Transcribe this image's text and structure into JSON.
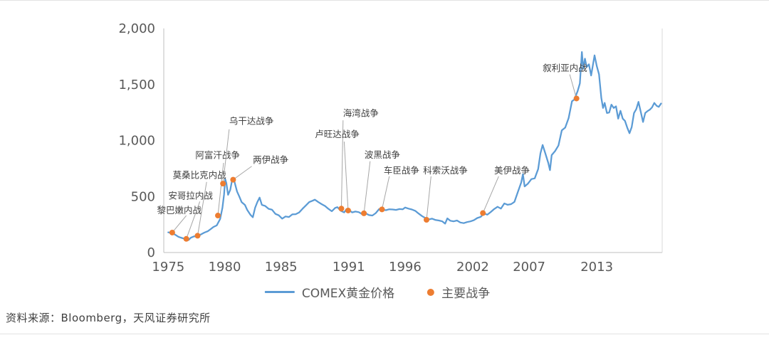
{
  "page": {
    "source_note": "资料来源：Bloomberg，天风证券研究所"
  },
  "chart_data": {
    "type": "line",
    "title": "",
    "xlabel": "",
    "ylabel": "",
    "grid": false,
    "legend_position": "bottom",
    "xlim": [
      1974.6,
      2018.8
    ],
    "ylim": [
      0,
      2000
    ],
    "colors": {
      "line": "#5B9BD5",
      "marker": "#ED7D31",
      "axis_text": "#595959",
      "annotation_text": "#404040",
      "leader_line": "#a6a6a6",
      "axis_line": "#bfbfbf",
      "border": "#d9d9d9"
    },
    "y_ticks": [
      {
        "v": 0,
        "label": "0"
      },
      {
        "v": 500,
        "label": "500"
      },
      {
        "v": 1000,
        "label": "1,000"
      },
      {
        "v": 1500,
        "label": "1,500"
      },
      {
        "v": 2000,
        "label": "2,000"
      }
    ],
    "x_ticks": [
      {
        "v": 1975,
        "label": "1975"
      },
      {
        "v": 1980,
        "label": "1980"
      },
      {
        "v": 1985,
        "label": "1985"
      },
      {
        "v": 1991,
        "label": "1991"
      },
      {
        "v": 1996,
        "label": "1996"
      },
      {
        "v": 2002,
        "label": "2002"
      },
      {
        "v": 2007,
        "label": "2007"
      },
      {
        "v": 2013,
        "label": "2013"
      }
    ],
    "series": [
      {
        "name": "COMEX黄金价格",
        "points": [
          [
            1975.0,
            180
          ],
          [
            1975.3,
            172
          ],
          [
            1975.6,
            160
          ],
          [
            1975.9,
            140
          ],
          [
            1976.2,
            130
          ],
          [
            1976.5,
            120
          ],
          [
            1976.8,
            112
          ],
          [
            1977.0,
            132
          ],
          [
            1977.3,
            145
          ],
          [
            1977.6,
            143
          ],
          [
            1977.9,
            162
          ],
          [
            1978.2,
            178
          ],
          [
            1978.5,
            190
          ],
          [
            1978.8,
            212
          ],
          [
            1979.0,
            228
          ],
          [
            1979.3,
            242
          ],
          [
            1979.6,
            300
          ],
          [
            1979.8,
            400
          ],
          [
            1979.95,
            520
          ],
          [
            1980.05,
            655
          ],
          [
            1980.15,
            620
          ],
          [
            1980.3,
            515
          ],
          [
            1980.5,
            560
          ],
          [
            1980.65,
            640
          ],
          [
            1980.8,
            660
          ],
          [
            1980.95,
            600
          ],
          [
            1981.1,
            545
          ],
          [
            1981.3,
            500
          ],
          [
            1981.5,
            450
          ],
          [
            1981.8,
            425
          ],
          [
            1982.0,
            380
          ],
          [
            1982.3,
            335
          ],
          [
            1982.5,
            315
          ],
          [
            1982.7,
            400
          ],
          [
            1982.9,
            450
          ],
          [
            1983.1,
            490
          ],
          [
            1983.3,
            425
          ],
          [
            1983.6,
            415
          ],
          [
            1983.9,
            390
          ],
          [
            1984.2,
            382
          ],
          [
            1984.5,
            345
          ],
          [
            1984.8,
            332
          ],
          [
            1985.1,
            302
          ],
          [
            1985.4,
            322
          ],
          [
            1985.7,
            317
          ],
          [
            1986.0,
            340
          ],
          [
            1986.3,
            342
          ],
          [
            1986.6,
            357
          ],
          [
            1986.9,
            390
          ],
          [
            1987.2,
            420
          ],
          [
            1987.5,
            450
          ],
          [
            1987.8,
            462
          ],
          [
            1988.0,
            472
          ],
          [
            1988.3,
            450
          ],
          [
            1988.6,
            432
          ],
          [
            1988.9,
            415
          ],
          [
            1989.2,
            390
          ],
          [
            1989.5,
            368
          ],
          [
            1989.8,
            398
          ],
          [
            1990.0,
            405
          ],
          [
            1990.3,
            372
          ],
          [
            1990.6,
            358
          ],
          [
            1990.8,
            388
          ],
          [
            1991.0,
            382
          ],
          [
            1991.3,
            358
          ],
          [
            1991.6,
            366
          ],
          [
            1991.9,
            360
          ],
          [
            1992.2,
            342
          ],
          [
            1992.5,
            350
          ],
          [
            1992.8,
            334
          ],
          [
            1993.1,
            330
          ],
          [
            1993.4,
            352
          ],
          [
            1993.7,
            388
          ],
          [
            1994.0,
            382
          ],
          [
            1994.3,
            378
          ],
          [
            1994.6,
            386
          ],
          [
            1994.9,
            384
          ],
          [
            1995.2,
            380
          ],
          [
            1995.5,
            388
          ],
          [
            1995.8,
            386
          ],
          [
            1996.0,
            402
          ],
          [
            1996.3,
            392
          ],
          [
            1996.6,
            384
          ],
          [
            1996.9,
            372
          ],
          [
            1997.2,
            348
          ],
          [
            1997.5,
            325
          ],
          [
            1997.8,
            308
          ],
          [
            1998.1,
            295
          ],
          [
            1998.4,
            302
          ],
          [
            1998.7,
            290
          ],
          [
            1999.0,
            286
          ],
          [
            1999.3,
            278
          ],
          [
            1999.55,
            258
          ],
          [
            1999.75,
            305
          ],
          [
            2000.0,
            284
          ],
          [
            2000.3,
            278
          ],
          [
            2000.6,
            286
          ],
          [
            2000.9,
            268
          ],
          [
            2001.2,
            262
          ],
          [
            2001.5,
            272
          ],
          [
            2001.8,
            278
          ],
          [
            2002.1,
            288
          ],
          [
            2002.4,
            308
          ],
          [
            2002.7,
            318
          ],
          [
            2003.0,
            348
          ],
          [
            2003.3,
            338
          ],
          [
            2003.6,
            362
          ],
          [
            2003.9,
            388
          ],
          [
            2004.2,
            408
          ],
          [
            2004.5,
            392
          ],
          [
            2004.8,
            438
          ],
          [
            2005.1,
            426
          ],
          [
            2005.4,
            432
          ],
          [
            2005.7,
            452
          ],
          [
            2006.0,
            540
          ],
          [
            2006.3,
            625
          ],
          [
            2006.45,
            700
          ],
          [
            2006.6,
            590
          ],
          [
            2006.9,
            615
          ],
          [
            2007.2,
            655
          ],
          [
            2007.5,
            662
          ],
          [
            2007.8,
            745
          ],
          [
            2008.0,
            885
          ],
          [
            2008.2,
            960
          ],
          [
            2008.45,
            880
          ],
          [
            2008.7,
            800
          ],
          [
            2008.85,
            735
          ],
          [
            2009.0,
            870
          ],
          [
            2009.3,
            905
          ],
          [
            2009.6,
            955
          ],
          [
            2009.9,
            1090
          ],
          [
            2010.2,
            1115
          ],
          [
            2010.5,
            1200
          ],
          [
            2010.8,
            1350
          ],
          [
            2011.0,
            1365
          ],
          [
            2011.3,
            1440
          ],
          [
            2011.5,
            1510
          ],
          [
            2011.68,
            1790
          ],
          [
            2011.8,
            1640
          ],
          [
            2011.95,
            1730
          ],
          [
            2012.1,
            1655
          ],
          [
            2012.3,
            1680
          ],
          [
            2012.5,
            1580
          ],
          [
            2012.7,
            1700
          ],
          [
            2012.8,
            1760
          ],
          [
            2013.0,
            1665
          ],
          [
            2013.2,
            1590
          ],
          [
            2013.4,
            1380
          ],
          [
            2013.55,
            1290
          ],
          [
            2013.7,
            1335
          ],
          [
            2013.9,
            1245
          ],
          [
            2014.1,
            1250
          ],
          [
            2014.3,
            1320
          ],
          [
            2014.5,
            1290
          ],
          [
            2014.7,
            1305
          ],
          [
            2014.9,
            1195
          ],
          [
            2015.1,
            1265
          ],
          [
            2015.3,
            1195
          ],
          [
            2015.5,
            1175
          ],
          [
            2015.7,
            1115
          ],
          [
            2015.9,
            1065
          ],
          [
            2016.1,
            1120
          ],
          [
            2016.3,
            1245
          ],
          [
            2016.5,
            1280
          ],
          [
            2016.7,
            1345
          ],
          [
            2016.9,
            1255
          ],
          [
            2017.1,
            1165
          ],
          [
            2017.3,
            1245
          ],
          [
            2017.5,
            1262
          ],
          [
            2017.7,
            1275
          ],
          [
            2017.9,
            1295
          ],
          [
            2018.1,
            1335
          ],
          [
            2018.3,
            1310
          ],
          [
            2018.5,
            1300
          ],
          [
            2018.7,
            1330
          ]
        ]
      }
    ],
    "markers": {
      "name": "主要战争",
      "wars": [
        {
          "name": "黎巴嫩内战",
          "x": 1975.35,
          "y": 178,
          "tx": 1974.0,
          "ty": 348,
          "lx": 1976.6,
          "ly": 330
        },
        {
          "name": "安哥拉内战",
          "x": 1976.6,
          "y": 122,
          "tx": 1975.0,
          "ty": 480,
          "lx": 1977.8,
          "ly": 455
        },
        {
          "name": "莫桑比克内战",
          "x": 1977.6,
          "y": 150,
          "tx": 1975.4,
          "ty": 665,
          "lx": 1978.4,
          "ly": 630
        },
        {
          "name": "阿富汗战争",
          "x": 1979.4,
          "y": 330,
          "tx": 1977.4,
          "ty": 840,
          "lx": 1979.9,
          "ly": 800
        },
        {
          "name": "乌干达战争",
          "x": 1979.85,
          "y": 615,
          "tx": 1980.4,
          "ty": 1145,
          "lx": 1980.4,
          "ly": 1100
        },
        {
          "name": "两伊战争",
          "x": 1980.75,
          "y": 650,
          "tx": 1982.5,
          "ty": 800,
          "lx": 1982.4,
          "ly": 770
        },
        {
          "name": "海湾战争",
          "x": 1990.35,
          "y": 392,
          "tx": 1990.5,
          "ty": 1215,
          "lx": 1990.5,
          "ly": 1180
        },
        {
          "name": "卢旺达战争",
          "x": 1990.95,
          "y": 375,
          "tx": 1988.0,
          "ty": 1030,
          "lx": 1990.6,
          "ly": 990
        },
        {
          "name": "波黑战争",
          "x": 1992.35,
          "y": 350,
          "tx": 1992.4,
          "ty": 845,
          "lx": 1992.9,
          "ly": 815
        },
        {
          "name": "车臣战争",
          "x": 1993.95,
          "y": 385,
          "tx": 1994.1,
          "ty": 705,
          "lx": 1994.6,
          "ly": 680
        },
        {
          "name": "科索沃战争",
          "x": 1997.9,
          "y": 292,
          "tx": 1997.6,
          "ty": 705,
          "lx": 1998.3,
          "ly": 680
        },
        {
          "name": "美伊战争",
          "x": 2002.9,
          "y": 352,
          "tx": 2003.9,
          "ty": 705,
          "lx": 2004.3,
          "ly": 680
        },
        {
          "name": "叙利亚内战",
          "x": 2011.2,
          "y": 1375,
          "tx": 2008.2,
          "ty": 1620,
          "lx": 2010.6,
          "ly": 1590
        }
      ]
    }
  }
}
